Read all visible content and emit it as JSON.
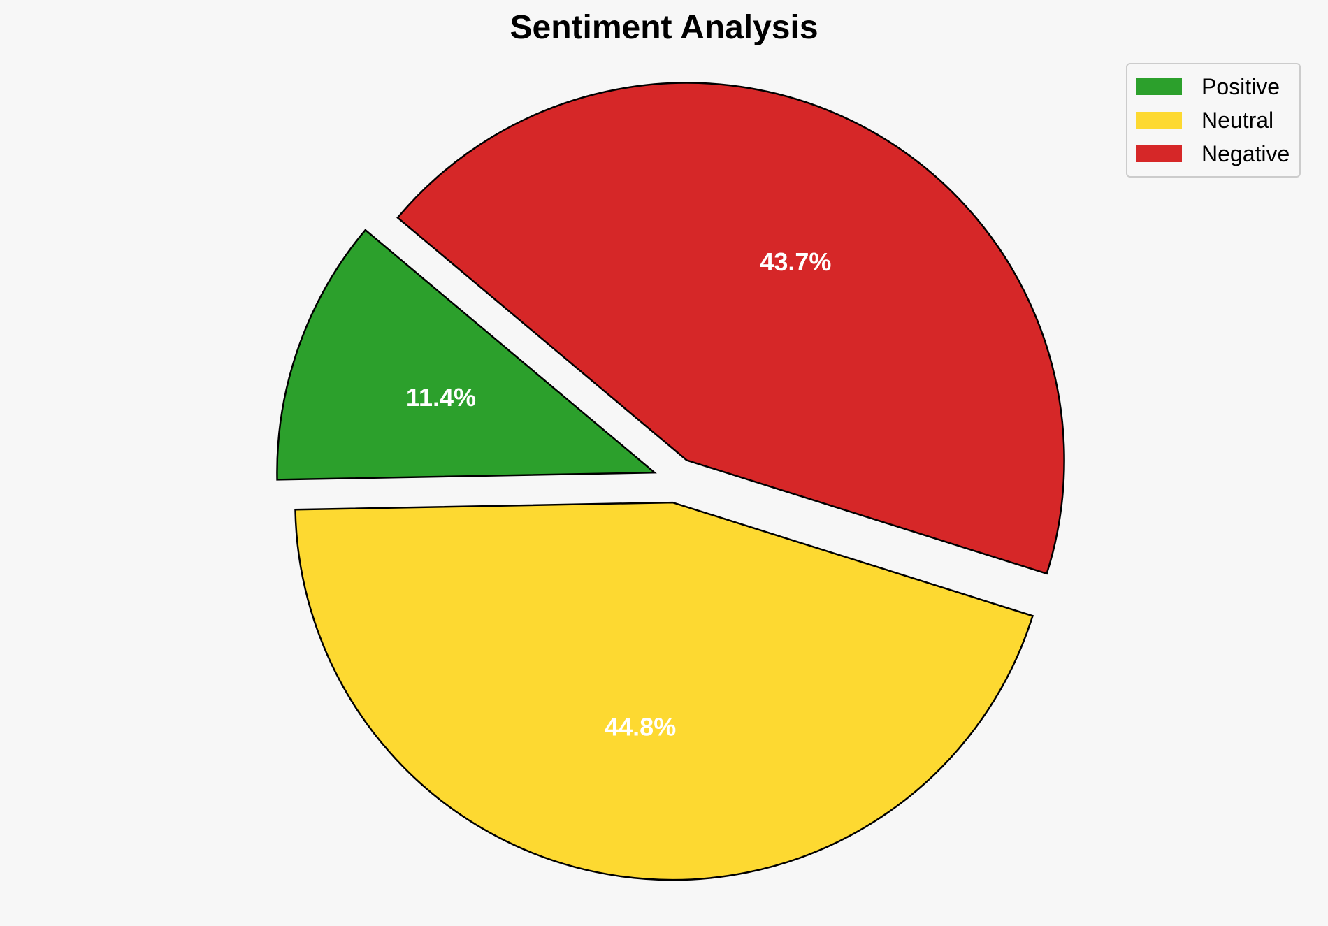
{
  "chart_data": {
    "type": "pie",
    "title": "Sentiment Analysis",
    "categories": [
      "Positive",
      "Neutral",
      "Negative"
    ],
    "values": [
      11.4,
      44.8,
      43.7
    ],
    "value_labels": [
      "11.4%",
      "44.8%",
      "43.7%"
    ],
    "colors": [
      "#2ca02c",
      "#fdd931",
      "#d62728"
    ],
    "label_color": "#ffffff",
    "edge_color": "#000000",
    "exploded": true,
    "legend": {
      "placement": "top-right",
      "entries": [
        "Positive",
        "Neutral",
        "Negative"
      ]
    }
  }
}
